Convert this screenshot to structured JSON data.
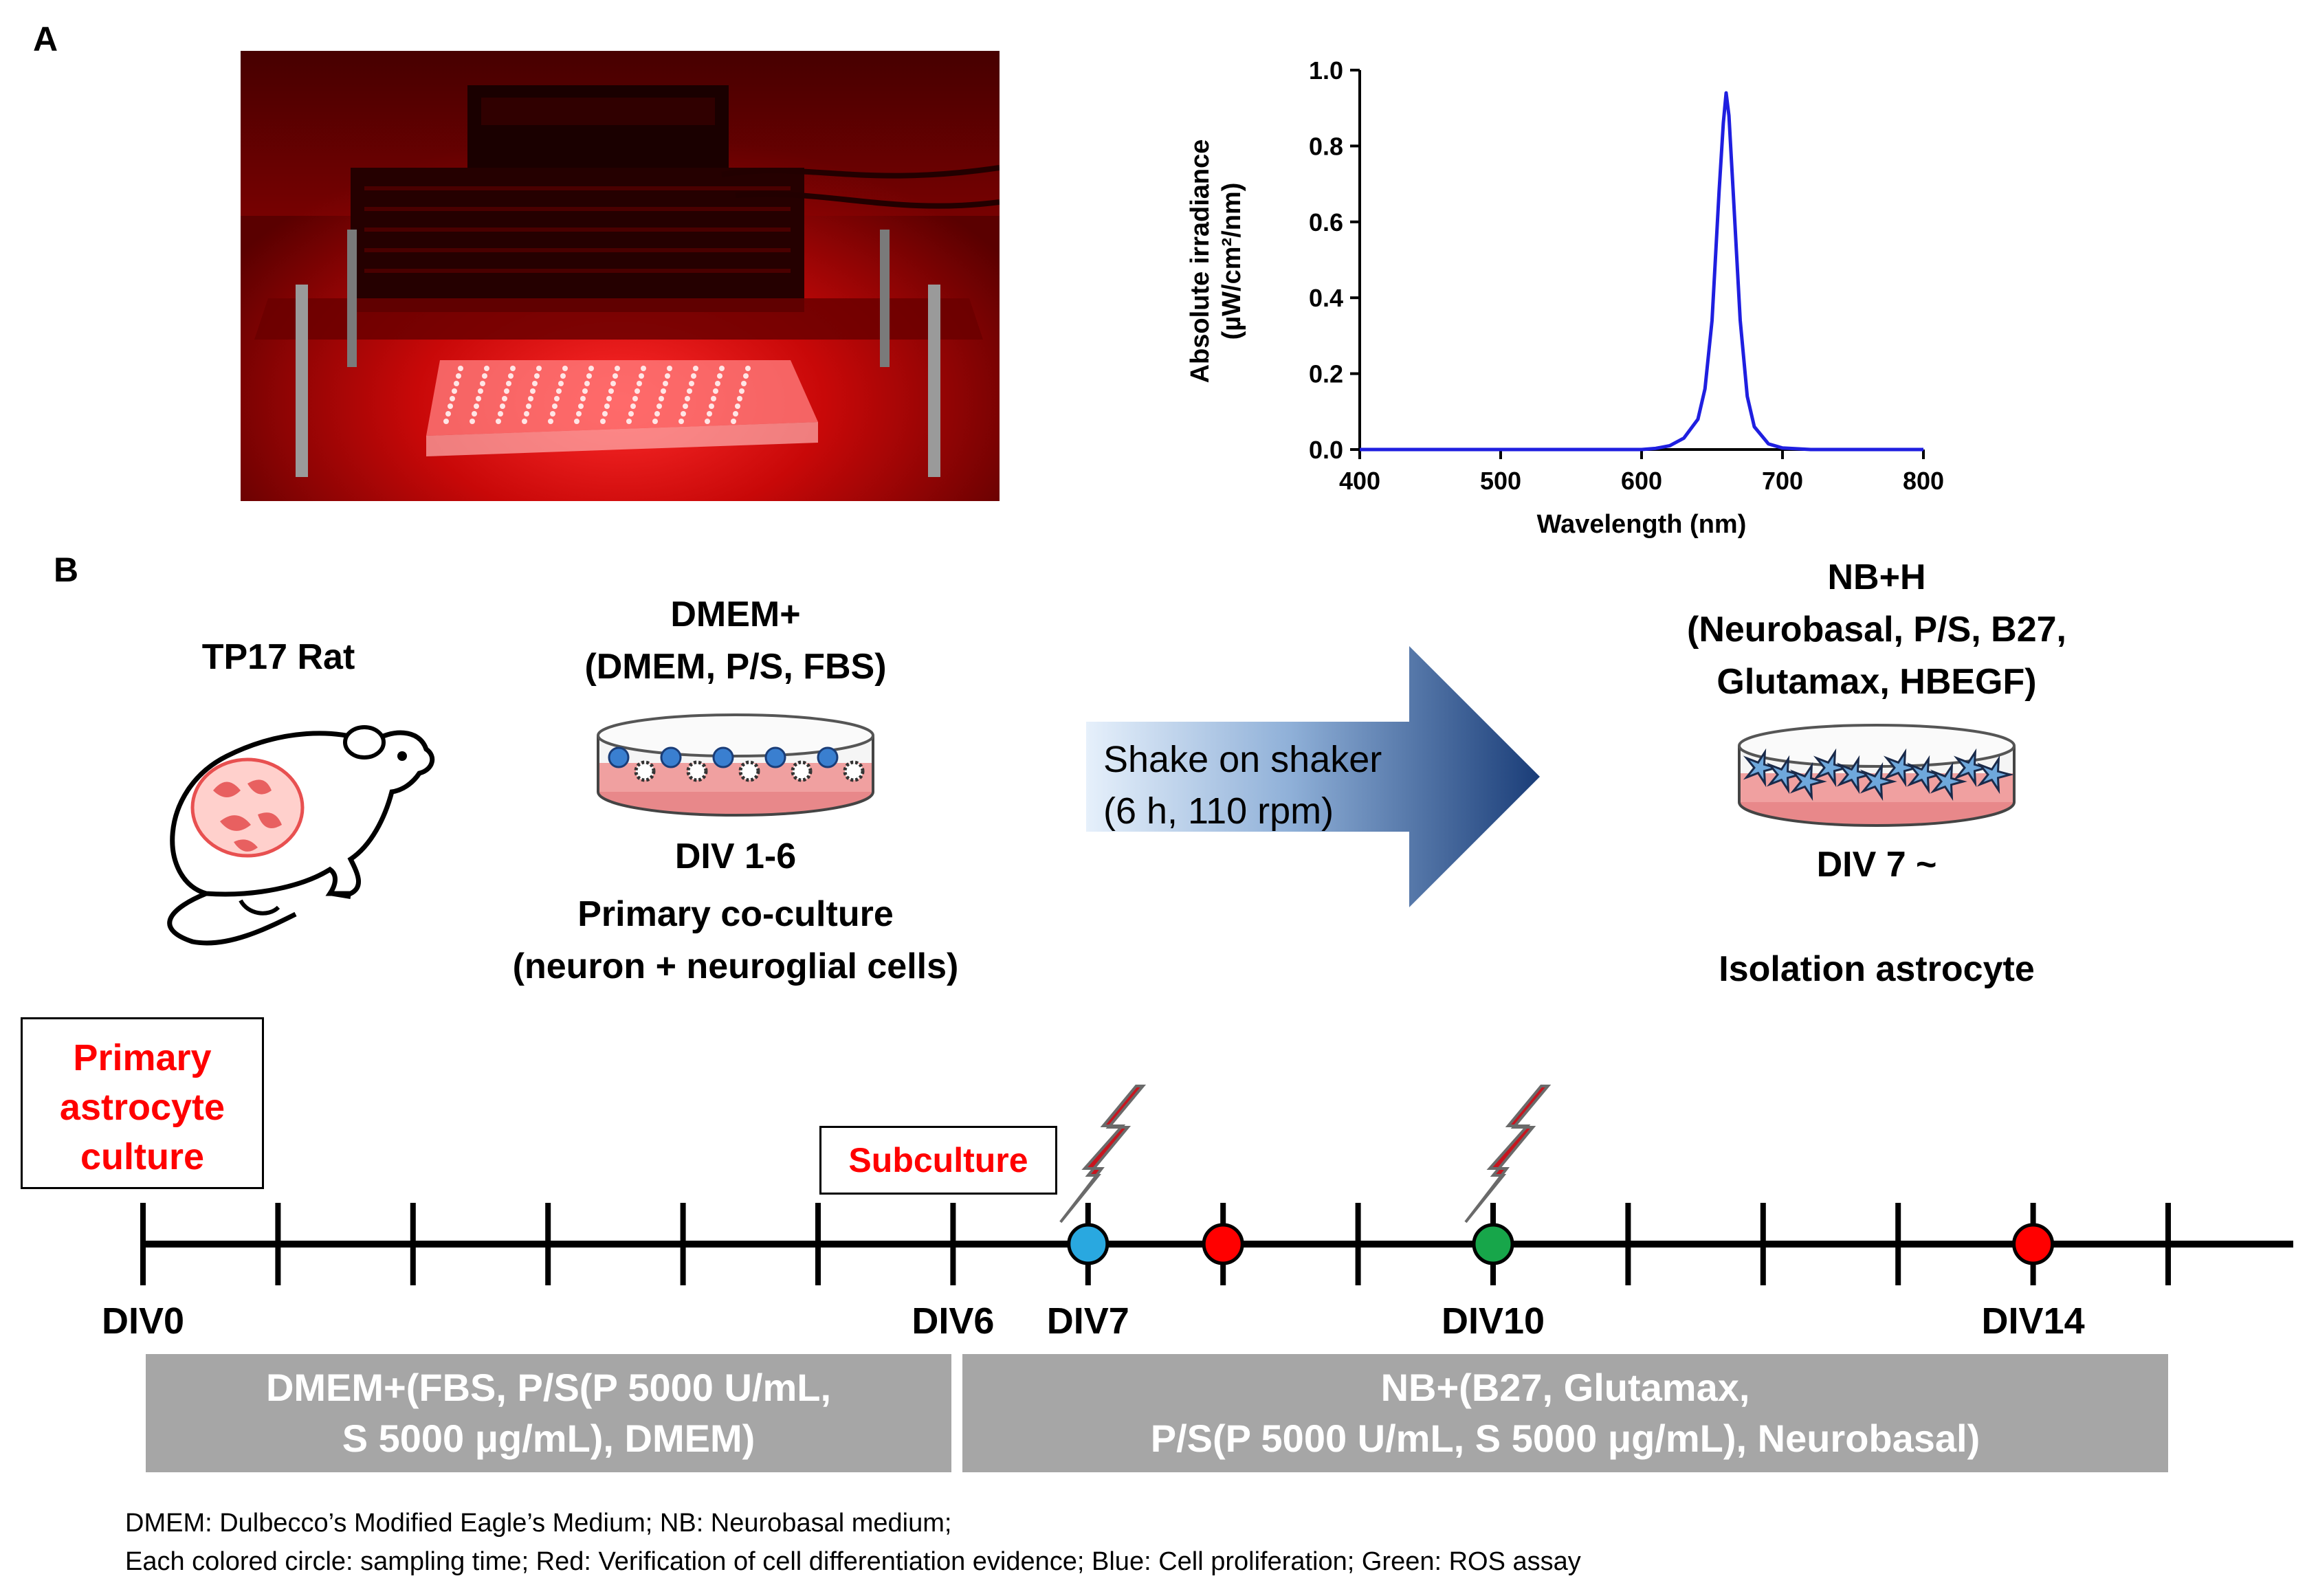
{
  "panel_a": {
    "label": "A",
    "photo_alt": "Red LED irradiation device over a cell culture plate",
    "chart": {
      "ylabel_line1": "Absolute irradiance",
      "ylabel_line2": "(µW/cm²/nm)",
      "xlabel": "Wavelength (nm)"
    }
  },
  "chart_data": {
    "type": "line",
    "title": "",
    "xlabel": "Wavelength (nm)",
    "ylabel": "Absolute irradiance (µW/cm²/nm)",
    "xlim": [
      400,
      800
    ],
    "ylim": [
      0.0,
      1.0
    ],
    "x_ticks": [
      "400",
      "500",
      "600",
      "700",
      "800"
    ],
    "y_ticks": [
      "0.0",
      "0.2",
      "0.4",
      "0.6",
      "0.8",
      "1.0"
    ],
    "grid": false,
    "series": [
      {
        "color": "#1f1fe0",
        "x": [
          400,
          500,
          600,
          610,
          620,
          630,
          640,
          645,
          650,
          655,
          658,
          660,
          662,
          665,
          670,
          675,
          680,
          690,
          700,
          720,
          800
        ],
        "y": [
          0.0,
          0.0,
          0.0,
          0.003,
          0.01,
          0.03,
          0.08,
          0.16,
          0.34,
          0.68,
          0.86,
          0.94,
          0.88,
          0.68,
          0.34,
          0.14,
          0.06,
          0.015,
          0.004,
          0.0,
          0.0
        ]
      }
    ]
  },
  "panel_b": {
    "label": "B",
    "rat_label": "TP17 Rat",
    "dish1": {
      "medium_line1": "DMEM+",
      "medium_line2": "(DMEM,  P/S,  FBS)",
      "div": "DIV 1-6",
      "desc_line1": "Primary  co-culture",
      "desc_line2": "(neuron + neuroglial cells)"
    },
    "arrow": {
      "line1": "Shake on shaker",
      "line2": "(6 h, 110 rpm)"
    },
    "dish2": {
      "medium_line1": "NB+H",
      "medium_line2": "(Neurobasal,  P/S,  B27,",
      "medium_line3": "Glutamax,  HBEGF)",
      "div": "DIV 7 ~",
      "desc": "Isolation  astrocyte"
    }
  },
  "timeline": {
    "start_box_line1": "Primary",
    "start_box_line2": "astrocyte",
    "start_box_line3": "culture",
    "subculture": "Subculture",
    "tick_labels": [
      "DIV0",
      "DIV6",
      "DIV7",
      "DIV10",
      "DIV14"
    ],
    "markers": [
      {
        "day": 7,
        "color": "#29a8e0"
      },
      {
        "day": 8,
        "color": "#ff0000"
      },
      {
        "day": 10,
        "color": "#17a64a"
      },
      {
        "day": 14,
        "color": "#ff0000"
      }
    ],
    "lightning_days": [
      7,
      10
    ],
    "bar1_line1": "DMEM+(FBS,  P/S(P 5000 U/mL,",
    "bar1_line2": "S 5000 μg/mL), DMEM)",
    "bar2_line1": "NB+(B27,  Glutamax,",
    "bar2_line2": "P/S(P 5000 U/mL, S 5000 μg/mL), Neurobasal)"
  },
  "footnote": {
    "line1": "DMEM: Dulbecco’s Modified Eagle’s Medium;  NB: Neurobasal medium;",
    "line2": "Each colored circle: sampling  time;  Red:  Verification of cell differentiation evidence;  Blue:  Cell proliferation;  Green:  ROS assay"
  }
}
